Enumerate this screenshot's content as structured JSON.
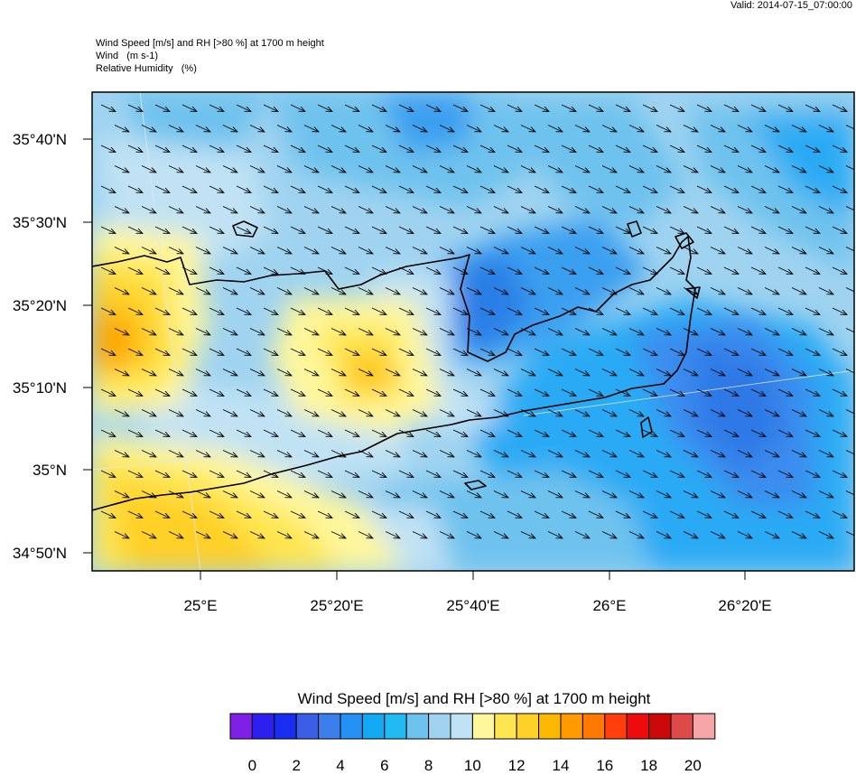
{
  "valid": "Valid: 2014-07-15_07:00:00",
  "titles": [
    "Wind Speed [m/s] and RH [>80 %] at 1700 m height",
    "Wind   (m s-1)",
    "Relative Humidity   (%)"
  ],
  "map": {
    "lat_labels": [
      "35°40'N",
      "35°30'N",
      "35°20'N",
      "35°10'N",
      "35°N",
      "34°50'N"
    ],
    "lon_labels": [
      "25°E",
      "25°20'E",
      "25°40'E",
      "26°E",
      "26°20'E"
    ],
    "wind_direction": "northwest"
  },
  "colorbar": {
    "title": "Wind Speed [m/s] and RH [>80 %] at 1700 m height",
    "colors": [
      "#7f1fe8",
      "#2d1ff0",
      "#1a2ef2",
      "#3a5ee6",
      "#3a7fec",
      "#2691f4",
      "#12a8f4",
      "#22baf2",
      "#6ec2ee",
      "#9fd3f0",
      "#c0e2f4",
      "#fff79c",
      "#ffe650",
      "#ffd027",
      "#ffb700",
      "#ff9a00",
      "#ff7800",
      "#ff3e0b",
      "#ee0b0b",
      "#cc0808",
      "#de4a4a",
      "#f6a6a6"
    ],
    "labels": [
      "0",
      "2",
      "4",
      "6",
      "8",
      "10",
      "12",
      "14",
      "16",
      "18",
      "20"
    ]
  },
  "colors": {
    "background_field": "#9fd3f0",
    "coast": "#000000"
  }
}
